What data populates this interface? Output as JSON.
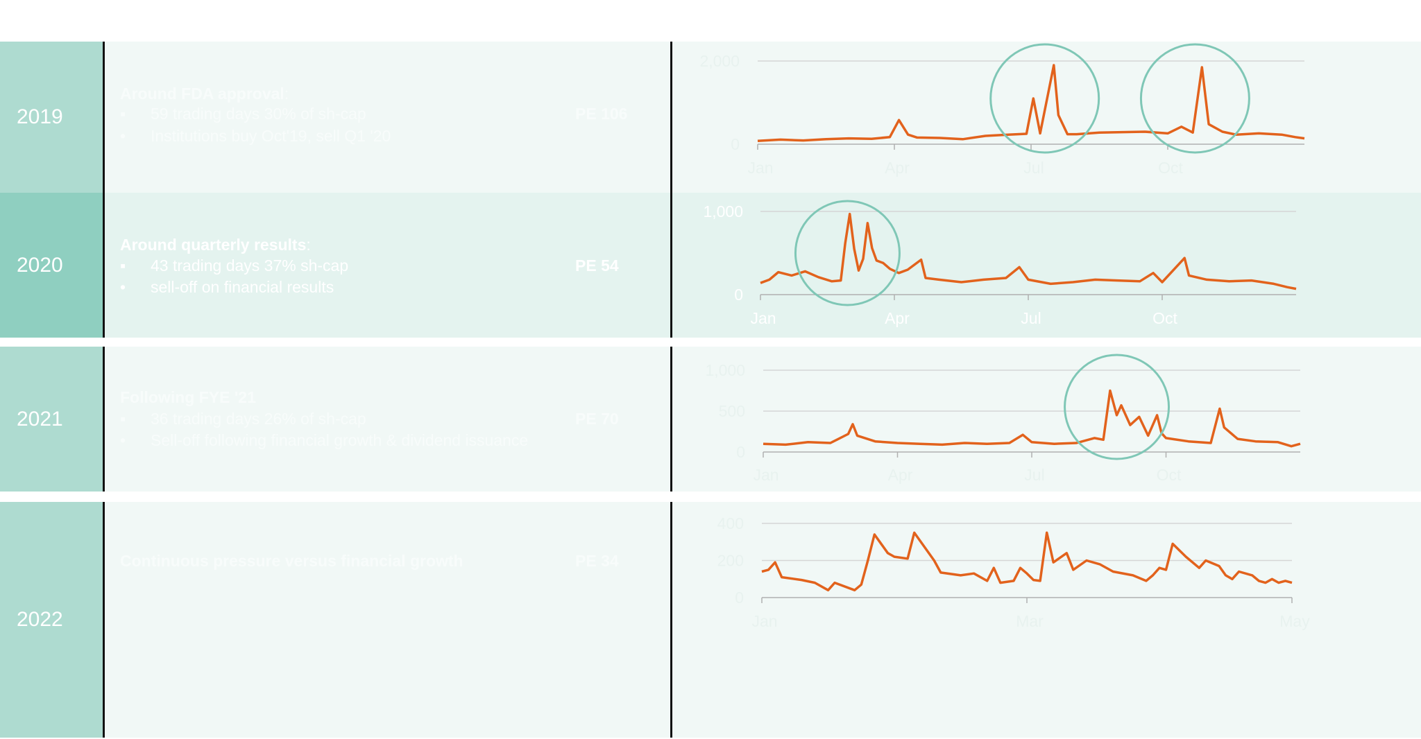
{
  "colors": {
    "line": "#E2621C",
    "circle": "#7FC7B6",
    "grid": "#D5D5D5",
    "axis": "#B0B0B0",
    "year_bg_default": "#AEDBD0",
    "year_bg_active": "#8FCFC0",
    "row_bg_default": "#F1F8F6",
    "row_bg_active": "#E4F3EF",
    "text_faint": "#F8FCFB",
    "text_active": "#FFFFFF",
    "tick_faint": "#E8F2EF",
    "tick_active": "#FFFFFF"
  },
  "rows": [
    {
      "year": "2019",
      "active": false,
      "heading": "Around FDA  approval",
      "heading_suffix": ":",
      "bullets": [
        {
          "mark": "▪",
          "text": "59 trading days 30% of sh-cap"
        },
        {
          "mark": "•",
          "text": "Institutions  buy Oct'19, sell Q1 '20"
        }
      ],
      "pe": "PE 106"
    },
    {
      "year": "2020",
      "active": true,
      "heading": "Around quarterly results",
      "heading_suffix": ":",
      "bullets": [
        {
          "mark": "▪",
          "text": "43 trading days 37% sh-cap"
        },
        {
          "mark": "•",
          "text": "sell-off on financial results"
        }
      ],
      "pe": "PE 54"
    },
    {
      "year": "2021",
      "active": false,
      "heading": "Following FYE '21",
      "heading_suffix": "",
      "bullets": [
        {
          "mark": "▪",
          "text": "36 trading days 26% of sh-cap"
        },
        {
          "mark": "•",
          "text": "Sell-off following financial growth & dividend issuance"
        }
      ],
      "pe": "PE 70"
    },
    {
      "year": "2022",
      "active": false,
      "heading": "Continuous pressure versus financial growth",
      "heading_suffix": "",
      "bullets": [],
      "pe": "PE 34"
    }
  ],
  "chart_data": [
    {
      "type": "line",
      "year": "2019",
      "x_ticks": [
        "Jan",
        "Apr",
        "Jul",
        "Oct"
      ],
      "x_tick_months": [
        0,
        3,
        6,
        9
      ],
      "x_range_months": [
        0,
        12
      ],
      "y_ticks": [
        "0",
        "2,000"
      ],
      "y_tick_values": [
        0,
        2000
      ],
      "ylim": [
        0,
        2000
      ],
      "grid": true,
      "highlight_circles_month": [
        6.3,
        9.6
      ],
      "points": [
        [
          0,
          80
        ],
        [
          0.5,
          110
        ],
        [
          1,
          90
        ],
        [
          1.5,
          120
        ],
        [
          2,
          140
        ],
        [
          2.5,
          130
        ],
        [
          2.9,
          170
        ],
        [
          3.1,
          580
        ],
        [
          3.3,
          230
        ],
        [
          3.5,
          160
        ],
        [
          4,
          150
        ],
        [
          4.5,
          120
        ],
        [
          5,
          200
        ],
        [
          5.5,
          230
        ],
        [
          5.9,
          250
        ],
        [
          6.05,
          1100
        ],
        [
          6.2,
          260
        ],
        [
          6.5,
          1900
        ],
        [
          6.6,
          700
        ],
        [
          6.8,
          240
        ],
        [
          7,
          240
        ],
        [
          7.5,
          280
        ],
        [
          8,
          290
        ],
        [
          8.5,
          300
        ],
        [
          9,
          260
        ],
        [
          9.3,
          420
        ],
        [
          9.55,
          280
        ],
        [
          9.75,
          1850
        ],
        [
          9.9,
          480
        ],
        [
          10.2,
          300
        ],
        [
          10.5,
          230
        ],
        [
          11,
          260
        ],
        [
          11.5,
          230
        ],
        [
          11.8,
          170
        ],
        [
          12,
          140
        ]
      ]
    },
    {
      "type": "line",
      "year": "2020",
      "x_ticks": [
        "Jan",
        "Apr",
        "Jul",
        "Oct"
      ],
      "x_tick_months": [
        0,
        3,
        6,
        9
      ],
      "x_range_months": [
        0,
        12
      ],
      "y_ticks": [
        "0",
        "1,000"
      ],
      "y_tick_values": [
        0,
        1000
      ],
      "ylim": [
        0,
        1000
      ],
      "grid": true,
      "highlight_circles_month": [
        1.95
      ],
      "points": [
        [
          0,
          140
        ],
        [
          0.2,
          180
        ],
        [
          0.4,
          270
        ],
        [
          0.7,
          230
        ],
        [
          1,
          280
        ],
        [
          1.3,
          210
        ],
        [
          1.6,
          160
        ],
        [
          1.8,
          170
        ],
        [
          1.9,
          620
        ],
        [
          2,
          970
        ],
        [
          2.1,
          550
        ],
        [
          2.2,
          290
        ],
        [
          2.3,
          430
        ],
        [
          2.4,
          860
        ],
        [
          2.5,
          560
        ],
        [
          2.6,
          410
        ],
        [
          2.75,
          380
        ],
        [
          2.9,
          310
        ],
        [
          3.1,
          260
        ],
        [
          3.3,
          300
        ],
        [
          3.6,
          420
        ],
        [
          3.7,
          200
        ],
        [
          4,
          180
        ],
        [
          4.5,
          150
        ],
        [
          5,
          180
        ],
        [
          5.5,
          200
        ],
        [
          5.8,
          330
        ],
        [
          6,
          180
        ],
        [
          6.5,
          130
        ],
        [
          7,
          150
        ],
        [
          7.5,
          180
        ],
        [
          8,
          170
        ],
        [
          8.5,
          160
        ],
        [
          8.8,
          260
        ],
        [
          9,
          150
        ],
        [
          9.5,
          440
        ],
        [
          9.6,
          230
        ],
        [
          10,
          180
        ],
        [
          10.5,
          160
        ],
        [
          11,
          170
        ],
        [
          11.5,
          130
        ],
        [
          11.8,
          90
        ],
        [
          12,
          70
        ]
      ]
    },
    {
      "type": "line",
      "year": "2021",
      "x_ticks": [
        "Jan",
        "Apr",
        "Jul",
        "Oct"
      ],
      "x_tick_months": [
        0,
        3,
        6,
        9
      ],
      "x_range_months": [
        0,
        12
      ],
      "y_ticks": [
        "0",
        "500",
        "1,000"
      ],
      "y_tick_values": [
        0,
        500,
        1000
      ],
      "ylim": [
        0,
        1000
      ],
      "grid": true,
      "highlight_circles_month": [
        7.9
      ],
      "points": [
        [
          0,
          100
        ],
        [
          0.5,
          90
        ],
        [
          1,
          120
        ],
        [
          1.5,
          110
        ],
        [
          1.9,
          220
        ],
        [
          2.0,
          340
        ],
        [
          2.1,
          200
        ],
        [
          2.5,
          130
        ],
        [
          3,
          110
        ],
        [
          3.5,
          100
        ],
        [
          4,
          90
        ],
        [
          4.5,
          110
        ],
        [
          5,
          100
        ],
        [
          5.5,
          110
        ],
        [
          5.8,
          210
        ],
        [
          6.0,
          120
        ],
        [
          6.5,
          100
        ],
        [
          7,
          110
        ],
        [
          7.4,
          170
        ],
        [
          7.6,
          150
        ],
        [
          7.75,
          750
        ],
        [
          7.9,
          450
        ],
        [
          8.0,
          570
        ],
        [
          8.2,
          330
        ],
        [
          8.4,
          430
        ],
        [
          8.6,
          200
        ],
        [
          8.8,
          450
        ],
        [
          8.9,
          230
        ],
        [
          9,
          170
        ],
        [
          9.5,
          130
        ],
        [
          10,
          110
        ],
        [
          10.2,
          530
        ],
        [
          10.3,
          300
        ],
        [
          10.6,
          160
        ],
        [
          11,
          130
        ],
        [
          11.5,
          120
        ],
        [
          11.8,
          70
        ],
        [
          12,
          100
        ]
      ]
    },
    {
      "type": "line",
      "year": "2022",
      "x_ticks": [
        "Jan",
        "Mar",
        "May"
      ],
      "x_tick_months": [
        0,
        2,
        4
      ],
      "x_range_months": [
        0,
        4
      ],
      "y_ticks": [
        "0",
        "200",
        "400"
      ],
      "y_tick_values": [
        0,
        200,
        400
      ],
      "ylim": [
        0,
        400
      ],
      "grid": true,
      "highlight_circles_month": [],
      "points": [
        [
          0,
          140
        ],
        [
          0.05,
          150
        ],
        [
          0.1,
          190
        ],
        [
          0.15,
          110
        ],
        [
          0.3,
          95
        ],
        [
          0.4,
          80
        ],
        [
          0.5,
          40
        ],
        [
          0.55,
          80
        ],
        [
          0.7,
          40
        ],
        [
          0.75,
          70
        ],
        [
          0.8,
          200
        ],
        [
          0.85,
          340
        ],
        [
          0.95,
          240
        ],
        [
          1.0,
          220
        ],
        [
          1.1,
          210
        ],
        [
          1.15,
          350
        ],
        [
          1.3,
          200
        ],
        [
          1.35,
          135
        ],
        [
          1.5,
          120
        ],
        [
          1.6,
          130
        ],
        [
          1.7,
          90
        ],
        [
          1.75,
          160
        ],
        [
          1.8,
          80
        ],
        [
          1.9,
          90
        ],
        [
          1.95,
          160
        ],
        [
          2.0,
          130
        ],
        [
          2.05,
          95
        ],
        [
          2.1,
          90
        ],
        [
          2.15,
          350
        ],
        [
          2.2,
          190
        ],
        [
          2.3,
          240
        ],
        [
          2.35,
          150
        ],
        [
          2.45,
          200
        ],
        [
          2.55,
          180
        ],
        [
          2.65,
          140
        ],
        [
          2.8,
          120
        ],
        [
          2.9,
          90
        ],
        [
          2.95,
          120
        ],
        [
          3.0,
          160
        ],
        [
          3.05,
          150
        ],
        [
          3.1,
          290
        ],
        [
          3.2,
          220
        ],
        [
          3.3,
          160
        ],
        [
          3.35,
          200
        ],
        [
          3.45,
          170
        ],
        [
          3.5,
          120
        ],
        [
          3.55,
          100
        ],
        [
          3.6,
          140
        ],
        [
          3.7,
          120
        ],
        [
          3.75,
          90
        ],
        [
          3.8,
          80
        ],
        [
          3.85,
          100
        ],
        [
          3.9,
          80
        ],
        [
          3.95,
          90
        ],
        [
          4.0,
          80
        ]
      ]
    }
  ]
}
